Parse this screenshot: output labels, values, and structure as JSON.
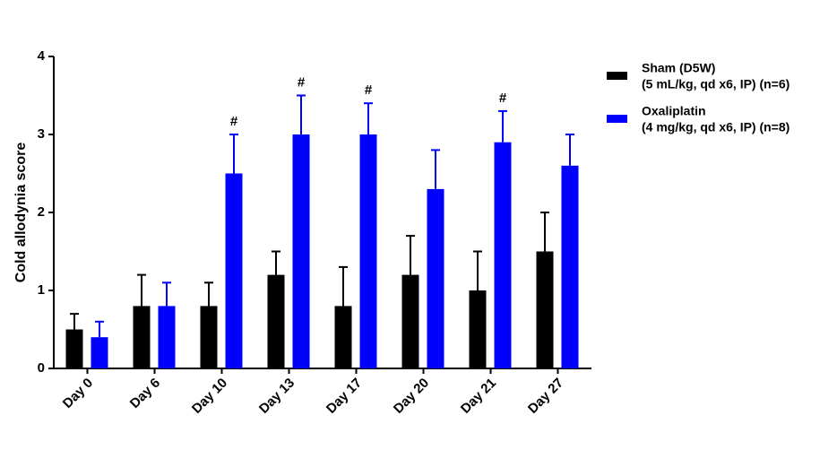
{
  "chart_data": {
    "type": "bar",
    "y_label": "Cold allodynia score",
    "categories": [
      "Day 0",
      "Day 6",
      "Day 10",
      "Day 13",
      "Day 17",
      "Day 20",
      "Day 21",
      "Day 27"
    ],
    "series": [
      {
        "name": "Sham (D5W)",
        "detail": "(5 mL/kg, qd x6, IP) (n=6)",
        "color": "#000000",
        "values": [
          0.5,
          0.8,
          0.8,
          1.2,
          0.8,
          1.2,
          1.0,
          1.5
        ],
        "errors": [
          0.2,
          0.4,
          0.3,
          0.3,
          0.5,
          0.5,
          0.5,
          0.5
        ],
        "significance_labels": [
          null,
          null,
          null,
          null,
          null,
          null,
          null,
          null
        ]
      },
      {
        "name": "Oxaliplatin",
        "detail": "(4 mg/kg, qd x6, IP) (n=8)",
        "color": "#0000ff",
        "values": [
          0.4,
          0.8,
          2.5,
          3.0,
          3.0,
          2.3,
          2.9,
          2.6
        ],
        "errors": [
          0.2,
          0.3,
          0.5,
          0.5,
          0.4,
          0.5,
          0.4,
          0.4
        ],
        "significance_labels": [
          null,
          null,
          "#",
          "#",
          "#",
          null,
          "#",
          null
        ]
      }
    ],
    "ylim": [
      0,
      4
    ],
    "yticks": [
      0,
      1,
      2,
      3,
      4
    ],
    "legend": "right"
  }
}
